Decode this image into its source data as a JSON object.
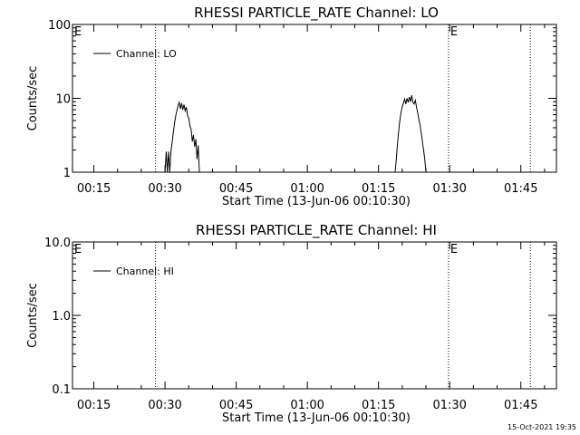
{
  "footer": {
    "timestamp": "15-Oct-2021 19:35"
  },
  "chart_data": [
    {
      "type": "line",
      "title": "RHESSI PARTICLE_RATE Channel: LO",
      "xlabel": "Start Time (13-Jun-06 00:10:30)",
      "ylabel": "Counts/sec",
      "yscale": "log",
      "ylim": [
        1,
        100
      ],
      "xlim": [
        "00:10:30",
        "01:52:30"
      ],
      "yticks": [
        "1",
        "10",
        "100"
      ],
      "xticks": [
        "00:15",
        "00:30",
        "00:45",
        "01:00",
        "01:15",
        "01:30",
        "01:45"
      ],
      "legend": "top-left",
      "series": [
        {
          "name": "Channel: LO",
          "points": [
            [
              "00:30:00",
              1.0
            ],
            [
              "00:30:15",
              1.9
            ],
            [
              "00:30:30",
              1.0
            ],
            [
              "00:30:45",
              1.9
            ],
            [
              "00:31:00",
              1.0
            ],
            [
              "00:31:15",
              1.9
            ],
            [
              "00:31:30",
              2.5
            ],
            [
              "00:31:45",
              3.5
            ],
            [
              "00:32:00",
              4.6
            ],
            [
              "00:32:15",
              5.8
            ],
            [
              "00:32:30",
              6.8
            ],
            [
              "00:32:45",
              8.0
            ],
            [
              "00:33:00",
              8.8
            ],
            [
              "00:33:15",
              7.2
            ],
            [
              "00:33:30",
              8.6
            ],
            [
              "00:33:45",
              7.0
            ],
            [
              "00:34:00",
              8.2
            ],
            [
              "00:34:15",
              6.8
            ],
            [
              "00:34:30",
              7.6
            ],
            [
              "00:34:45",
              5.8
            ],
            [
              "00:35:00",
              5.4
            ],
            [
              "00:35:15",
              4.2
            ],
            [
              "00:35:30",
              3.8
            ],
            [
              "00:35:45",
              2.6
            ],
            [
              "00:36:00",
              3.2
            ],
            [
              "00:36:15",
              2.2
            ],
            [
              "00:36:30",
              2.8
            ],
            [
              "00:36:45",
              1.5
            ],
            [
              "00:37:00",
              2.3
            ],
            [
              "00:37:15",
              1.0
            ],
            [
              "01:18:30",
              1.0
            ],
            [
              "01:18:45",
              1.5
            ],
            [
              "01:19:00",
              2.4
            ],
            [
              "01:19:15",
              3.6
            ],
            [
              "01:19:30",
              5.0
            ],
            [
              "01:19:45",
              6.4
            ],
            [
              "01:20:00",
              7.8
            ],
            [
              "01:20:15",
              8.6
            ],
            [
              "01:20:30",
              9.8
            ],
            [
              "01:20:45",
              8.4
            ],
            [
              "01:21:00",
              10.0
            ],
            [
              "01:21:15",
              8.8
            ],
            [
              "01:21:30",
              10.4
            ],
            [
              "01:21:45",
              9.0
            ],
            [
              "01:22:00",
              11.0
            ],
            [
              "01:22:15",
              8.8
            ],
            [
              "01:22:30",
              8.4
            ],
            [
              "01:22:45",
              9.4
            ],
            [
              "01:23:00",
              7.6
            ],
            [
              "01:23:15",
              6.4
            ],
            [
              "01:23:30",
              5.2
            ],
            [
              "01:23:45",
              4.4
            ],
            [
              "01:24:00",
              3.4
            ],
            [
              "01:24:15",
              2.6
            ],
            [
              "01:24:30",
              2.0
            ],
            [
              "01:24:45",
              1.5
            ],
            [
              "01:25:00",
              1.0
            ]
          ]
        }
      ],
      "markers": [
        {
          "time": "00:28:00",
          "label": ""
        },
        {
          "time": "01:29:45",
          "label": "E"
        },
        {
          "time": "01:47:00",
          "label": ""
        }
      ],
      "corner_label": "E"
    },
    {
      "type": "line",
      "title": "RHESSI PARTICLE_RATE Channel: HI",
      "xlabel": "Start Time (13-Jun-06 00:10:30)",
      "ylabel": "Counts/sec",
      "yscale": "log",
      "ylim": [
        0.1,
        10
      ],
      "xlim": [
        "00:10:30",
        "01:52:30"
      ],
      "yticks": [
        "0.1",
        "1.0",
        "10.0"
      ],
      "xticks": [
        "00:15",
        "00:30",
        "00:45",
        "01:00",
        "01:15",
        "01:30",
        "01:45"
      ],
      "legend": "top-left",
      "series": [
        {
          "name": "Channel: HI",
          "points": []
        }
      ],
      "markers": [
        {
          "time": "00:28:00",
          "label": ""
        },
        {
          "time": "01:29:45",
          "label": "E"
        },
        {
          "time": "01:47:00",
          "label": ""
        }
      ],
      "corner_label": "E"
    }
  ]
}
